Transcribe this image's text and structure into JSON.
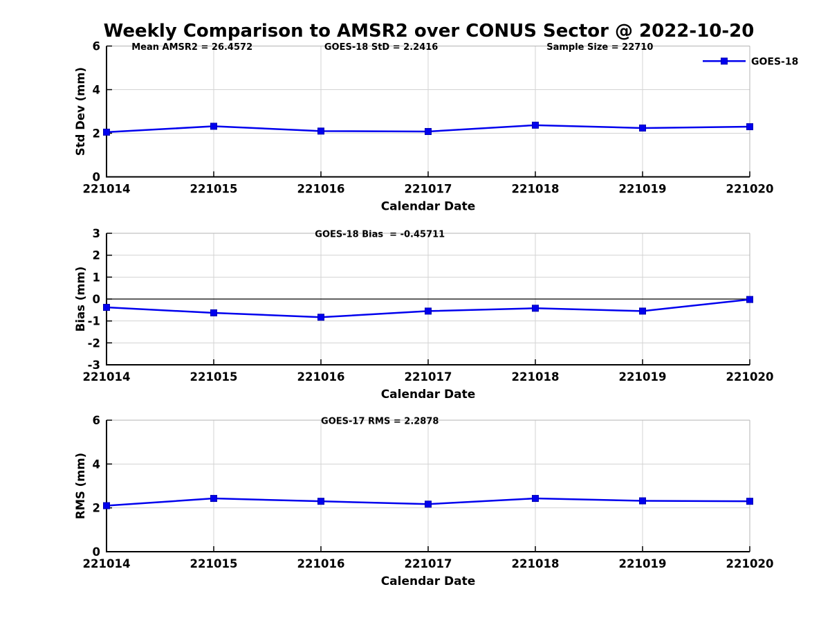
{
  "title": "Weekly Comparison to AMSR2 over CONUS Sector @ 2022-10-20",
  "colors": {
    "line": "#0000EE",
    "marker_edge": "#0000B3",
    "grid": "#d3d3d3",
    "box": "#b3b3b3",
    "axis": "#000000",
    "zero_line": "#000000",
    "text": "#000000"
  },
  "chart_data": [
    {
      "type": "line",
      "id": "std-dev",
      "annotations": [
        "Mean AMSR2 = 26.4572",
        "GOES-18 StD = 2.2416",
        "Sample Size = 22710"
      ],
      "categories": [
        "221014",
        "221015",
        "221016",
        "221017",
        "221018",
        "221019",
        "221020"
      ],
      "series": [
        {
          "name": "GOES-18",
          "values": [
            2.05,
            2.32,
            2.1,
            2.08,
            2.37,
            2.24,
            2.3
          ]
        }
      ],
      "xlabel": "Calendar Date",
      "ylabel": "Std Dev (mm)",
      "ylim": [
        0,
        6
      ],
      "yticks": [
        0,
        2,
        4,
        6
      ],
      "grid": true,
      "zero_line": false,
      "legend": {
        "label": "GOES-18",
        "position": "top-right-outside"
      }
    },
    {
      "type": "line",
      "id": "bias",
      "annotations": [
        "GOES-18 Bias  = -0.45711"
      ],
      "categories": [
        "221014",
        "221015",
        "221016",
        "221017",
        "221018",
        "221019",
        "221020"
      ],
      "series": [
        {
          "name": "GOES-18",
          "values": [
            -0.38,
            -0.63,
            -0.83,
            -0.55,
            -0.42,
            -0.55,
            -0.02
          ]
        }
      ],
      "xlabel": "Calendar Date",
      "ylabel": "Bias (mm)",
      "ylim": [
        -3,
        3
      ],
      "yticks": [
        -3,
        -2,
        -1,
        0,
        1,
        2,
        3
      ],
      "grid": true,
      "zero_line": true,
      "legend": null
    },
    {
      "type": "line",
      "id": "rms",
      "annotations": [
        "GOES-17 RMS = 2.2878"
      ],
      "categories": [
        "221014",
        "221015",
        "221016",
        "221017",
        "221018",
        "221019",
        "221020"
      ],
      "series": [
        {
          "name": "GOES-18",
          "values": [
            2.1,
            2.43,
            2.3,
            2.17,
            2.43,
            2.32,
            2.3
          ]
        }
      ],
      "xlabel": "Calendar Date",
      "ylabel": "RMS (mm)",
      "ylim": [
        0,
        6
      ],
      "yticks": [
        0,
        2,
        4,
        6
      ],
      "grid": true,
      "zero_line": false,
      "legend": null
    }
  ]
}
